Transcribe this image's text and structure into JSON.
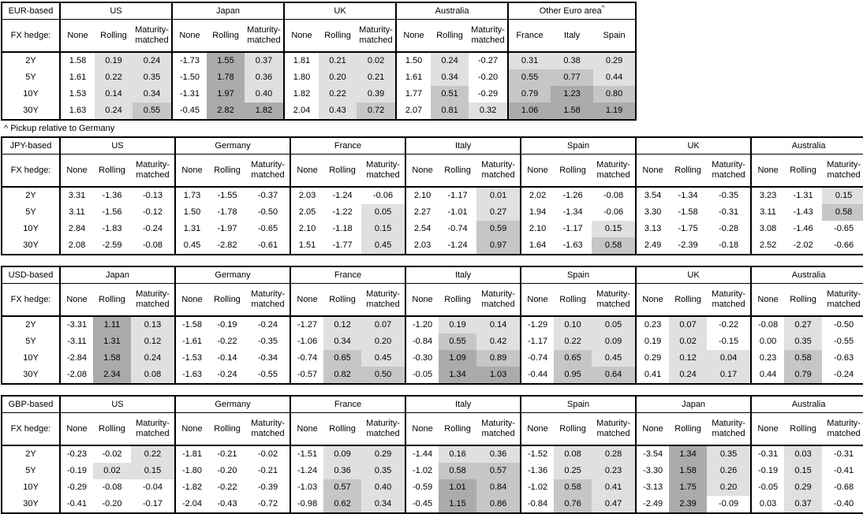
{
  "page": {
    "footnote": "^ Pickup relative to Germany"
  },
  "labels": {
    "fx_hedge": "FX hedge:",
    "maturities": [
      "2Y",
      "5Y",
      "10Y",
      "30Y"
    ],
    "hedge_columns": [
      "None",
      "Rolling",
      "Maturity-matched"
    ]
  },
  "colors": {
    "shade_light": "#e0e0e0",
    "shade_medium": "#c6c6c6",
    "shade_dark": "#ababab",
    "border": "#000000"
  },
  "shade_rule": {
    "light_min": 0,
    "medium_min": 0.5,
    "dark_min": 1.0,
    "none_column_exempt": true
  },
  "tables": [
    {
      "base": "EUR-based",
      "full_width": false,
      "groups": [
        {
          "name": "US",
          "rows": [
            [
              "1.58",
              "0.19",
              "0.24"
            ],
            [
              "1.61",
              "0.22",
              "0.35"
            ],
            [
              "1.53",
              "0.14",
              "0.34"
            ],
            [
              "1.63",
              "0.24",
              "0.55"
            ]
          ]
        },
        {
          "name": "Japan",
          "rows": [
            [
              "-1.73",
              "1.55",
              "0.37"
            ],
            [
              "-1.50",
              "1.78",
              "0.36"
            ],
            [
              "-1.31",
              "1.97",
              "0.40"
            ],
            [
              "-0.45",
              "2.82",
              "1.82"
            ]
          ]
        },
        {
          "name": "UK",
          "rows": [
            [
              "1.81",
              "0.21",
              "0.02"
            ],
            [
              "1.80",
              "0.20",
              "0.21"
            ],
            [
              "1.82",
              "0.22",
              "0.39"
            ],
            [
              "2.04",
              "0.43",
              "0.72"
            ]
          ]
        },
        {
          "name": "Australia",
          "rows": [
            [
              "1.50",
              "0.24",
              "-0.27"
            ],
            [
              "1.61",
              "0.34",
              "-0.20"
            ],
            [
              "1.77",
              "0.51",
              "-0.29"
            ],
            [
              "2.07",
              "0.81",
              "0.32"
            ]
          ]
        },
        {
          "name": "Other Euro area",
          "footnote_mark": "^",
          "columns": [
            "France",
            "Italy",
            "Spain"
          ],
          "shade_all": true,
          "rows": [
            [
              "0.31",
              "0.38",
              "0.29"
            ],
            [
              "0.55",
              "0.77",
              "0.44"
            ],
            [
              "0.79",
              "1.23",
              "0.80"
            ],
            [
              "1.06",
              "1.58",
              "1.19"
            ]
          ]
        }
      ]
    },
    {
      "base": "JPY-based",
      "full_width": true,
      "groups": [
        {
          "name": "US",
          "rows": [
            [
              "3.31",
              "-1.36",
              "-0.13"
            ],
            [
              "3.11",
              "-1.56",
              "-0.12"
            ],
            [
              "2.84",
              "-1.83",
              "-0.24"
            ],
            [
              "2.08",
              "-2.59",
              "-0.08"
            ]
          ]
        },
        {
          "name": "Germany",
          "rows": [
            [
              "1.73",
              "-1.55",
              "-0.37"
            ],
            [
              "1.50",
              "-1.78",
              "-0.50"
            ],
            [
              "1.31",
              "-1.97",
              "-0.65"
            ],
            [
              "0.45",
              "-2.82",
              "-0.61"
            ]
          ]
        },
        {
          "name": "France",
          "rows": [
            [
              "2.03",
              "-1.24",
              "-0.06"
            ],
            [
              "2.05",
              "-1.22",
              "0.05"
            ],
            [
              "2.10",
              "-1.18",
              "0.15"
            ],
            [
              "1.51",
              "-1.77",
              "0.45"
            ]
          ]
        },
        {
          "name": "Italy",
          "rows": [
            [
              "2.10",
              "-1.17",
              "0.01"
            ],
            [
              "2.27",
              "-1.01",
              "0.27"
            ],
            [
              "2.54",
              "-0.74",
              "0.59"
            ],
            [
              "2.03",
              "-1.24",
              "0.97"
            ]
          ]
        },
        {
          "name": "Spain",
          "rows": [
            [
              "2.02",
              "-1.26",
              "-0.08"
            ],
            [
              "1.94",
              "-1.34",
              "-0.06"
            ],
            [
              "2.10",
              "-1.17",
              "0.15"
            ],
            [
              "1.64",
              "-1.63",
              "0.58"
            ]
          ]
        },
        {
          "name": "UK",
          "rows": [
            [
              "3.54",
              "-1.34",
              "-0.35"
            ],
            [
              "3.30",
              "-1.58",
              "-0.31"
            ],
            [
              "3.13",
              "-1.75",
              "-0.28"
            ],
            [
              "2.49",
              "-2.39",
              "-0.18"
            ]
          ]
        },
        {
          "name": "Australia",
          "rows": [
            [
              "3.23",
              "-1.31",
              "0.15"
            ],
            [
              "3.11",
              "-1.43",
              "0.58"
            ],
            [
              "3.08",
              "-1.46",
              "-0.65"
            ],
            [
              "2.52",
              "-2.02",
              "-0.66"
            ]
          ]
        }
      ]
    },
    {
      "base": "USD-based",
      "full_width": true,
      "groups": [
        {
          "name": "Japan",
          "rows": [
            [
              "-3.31",
              "1.11",
              "0.13"
            ],
            [
              "-3.11",
              "1.31",
              "0.12"
            ],
            [
              "-2.84",
              "1.58",
              "0.24"
            ],
            [
              "-2.08",
              "2.34",
              "0.08"
            ]
          ]
        },
        {
          "name": "Germany",
          "rows": [
            [
              "-1.58",
              "-0.19",
              "-0.24"
            ],
            [
              "-1.61",
              "-0.22",
              "-0.35"
            ],
            [
              "-1.53",
              "-0.14",
              "-0.34"
            ],
            [
              "-1.63",
              "-0.24",
              "-0.55"
            ]
          ]
        },
        {
          "name": "France",
          "rows": [
            [
              "-1.27",
              "0.12",
              "0.07"
            ],
            [
              "-1.06",
              "0.34",
              "0.20"
            ],
            [
              "-0.74",
              "0.65",
              "0.45"
            ],
            [
              "-0.57",
              "0.82",
              "0.50"
            ]
          ]
        },
        {
          "name": "Italy",
          "rows": [
            [
              "-1.20",
              "0.19",
              "0.14"
            ],
            [
              "-0.84",
              "0.55",
              "0.42"
            ],
            [
              "-0.30",
              "1.09",
              "0.89"
            ],
            [
              "-0.05",
              "1.34",
              "1.03"
            ]
          ]
        },
        {
          "name": "Spain",
          "rows": [
            [
              "-1.29",
              "0.10",
              "0.05"
            ],
            [
              "-1.17",
              "0.22",
              "0.09"
            ],
            [
              "-0.74",
              "0.65",
              "0.45"
            ],
            [
              "-0.44",
              "0.95",
              "0.64"
            ]
          ]
        },
        {
          "name": "UK",
          "rows": [
            [
              "0.23",
              "0.07",
              "-0.22"
            ],
            [
              "0.19",
              "0.02",
              "-0.15"
            ],
            [
              "0.29",
              "0.12",
              "0.04"
            ],
            [
              "0.41",
              "0.24",
              "0.17"
            ]
          ]
        },
        {
          "name": "Australia",
          "rows": [
            [
              "-0.08",
              "0.27",
              "-0.50"
            ],
            [
              "0.00",
              "0.35",
              "-0.55"
            ],
            [
              "0.23",
              "0.58",
              "-0.63"
            ],
            [
              "0.44",
              "0.79",
              "-0.24"
            ]
          ]
        }
      ]
    },
    {
      "base": "GBP-based",
      "full_width": true,
      "groups": [
        {
          "name": "US",
          "rows": [
            [
              "-0.23",
              "-0.02",
              "0.22"
            ],
            [
              "-0.19",
              "0.02",
              "0.15"
            ],
            [
              "-0.29",
              "-0.08",
              "-0.04"
            ],
            [
              "-0.41",
              "-0.20",
              "-0.17"
            ]
          ]
        },
        {
          "name": "Germany",
          "rows": [
            [
              "-1.81",
              "-0.21",
              "-0.02"
            ],
            [
              "-1.80",
              "-0.20",
              "-0.21"
            ],
            [
              "-1.82",
              "-0.22",
              "-0.39"
            ],
            [
              "-2.04",
              "-0.43",
              "-0.72"
            ]
          ]
        },
        {
          "name": "France",
          "rows": [
            [
              "-1.51",
              "0.09",
              "0.29"
            ],
            [
              "-1.24",
              "0.36",
              "0.35"
            ],
            [
              "-1.03",
              "0.57",
              "0.40"
            ],
            [
              "-0.98",
              "0.62",
              "0.34"
            ]
          ]
        },
        {
          "name": "Italy",
          "rows": [
            [
              "-1.44",
              "0.16",
              "0.36"
            ],
            [
              "-1.02",
              "0.58",
              "0.57"
            ],
            [
              "-0.59",
              "1.01",
              "0.84"
            ],
            [
              "-0.45",
              "1.15",
              "0.86"
            ]
          ]
        },
        {
          "name": "Spain",
          "rows": [
            [
              "-1.52",
              "0.08",
              "0.28"
            ],
            [
              "-1.36",
              "0.25",
              "0.23"
            ],
            [
              "-1.02",
              "0.58",
              "0.41"
            ],
            [
              "-0.84",
              "0.76",
              "0.47"
            ]
          ]
        },
        {
          "name": "Japan",
          "rows": [
            [
              "-3.54",
              "1.34",
              "0.35"
            ],
            [
              "-3.30",
              "1.58",
              "0.26"
            ],
            [
              "-3.13",
              "1.75",
              "0.20"
            ],
            [
              "-2.49",
              "2.39",
              "-0.09"
            ]
          ]
        },
        {
          "name": "Australia",
          "rows": [
            [
              "-0.31",
              "0.03",
              "-0.31"
            ],
            [
              "-0.19",
              "0.15",
              "-0.41"
            ],
            [
              "-0.05",
              "0.29",
              "-0.68"
            ],
            [
              "0.03",
              "0.37",
              "-0.40"
            ]
          ]
        }
      ]
    }
  ]
}
